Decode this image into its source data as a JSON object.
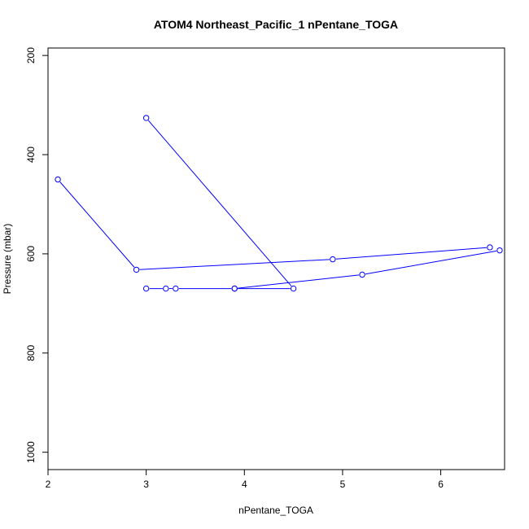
{
  "chart_data": {
    "type": "line",
    "title": "ATOM4 Northeast_Pacific_1 nPentane_TOGA",
    "xlabel": "nPentane_TOGA",
    "ylabel": "Pressure (mbar)",
    "xlim": [
      2.0,
      6.65
    ],
    "ylim": [
      1035,
      185
    ],
    "y_reversed": true,
    "xticks": [
      2,
      3,
      4,
      5,
      6
    ],
    "yticks": [
      200,
      400,
      600,
      800,
      1000
    ],
    "grid": false,
    "color": "#0000ff",
    "marker": "open-circle",
    "series": [
      {
        "points": [
          {
            "x": 3.0,
            "y": 326
          },
          {
            "x": 4.5,
            "y": 670
          },
          {
            "x": 3.9,
            "y": 670
          },
          {
            "x": 3.3,
            "y": 670
          },
          {
            "x": 3.2,
            "y": 670
          },
          {
            "x": 3.0,
            "y": 670
          }
        ]
      },
      {
        "points": [
          {
            "x": 2.1,
            "y": 450
          },
          {
            "x": 2.9,
            "y": 632
          },
          {
            "x": 4.9,
            "y": 611
          },
          {
            "x": 6.5,
            "y": 587
          }
        ]
      },
      {
        "points": [
          {
            "x": 3.9,
            "y": 670
          },
          {
            "x": 5.2,
            "y": 642
          },
          {
            "x": 6.6,
            "y": 593
          }
        ]
      }
    ]
  }
}
